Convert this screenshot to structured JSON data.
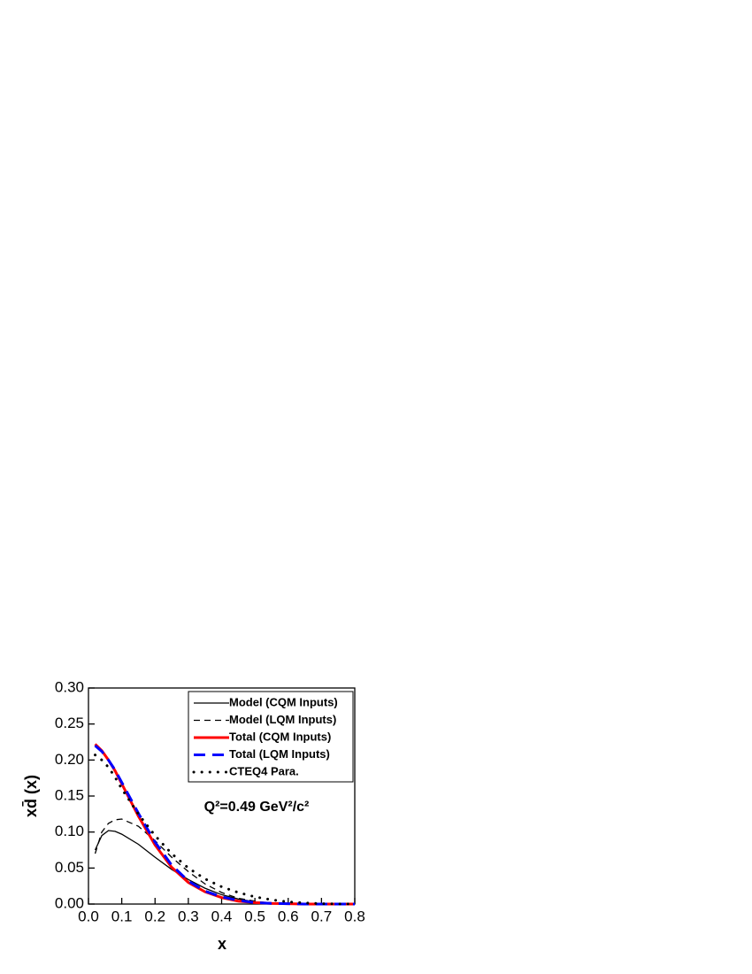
{
  "chart_data": {
    "type": "line",
    "xlabel": "x",
    "ylabel": "xd̄ (x)",
    "annotation": "Q²=0.49 GeV²/c²",
    "x": [
      0.02,
      0.04,
      0.06,
      0.08,
      0.1,
      0.15,
      0.2,
      0.25,
      0.3,
      0.35,
      0.4,
      0.45,
      0.5,
      0.55,
      0.6,
      0.65,
      0.7,
      0.8
    ],
    "series": [
      {
        "name": "Model (CQM Inputs)",
        "color": "#000000",
        "line_style": "solid",
        "line_width": 1.3,
        "values": [
          0.075,
          0.095,
          0.102,
          0.101,
          0.097,
          0.083,
          0.065,
          0.048,
          0.034,
          0.022,
          0.013,
          0.007,
          0.003,
          0.001,
          0,
          0,
          0,
          0
        ]
      },
      {
        "name": "Model (LQM Inputs)",
        "color": "#000000",
        "line_style": "dashed",
        "line_width": 1.3,
        "values": [
          0.07,
          0.1,
          0.112,
          0.117,
          0.118,
          0.108,
          0.088,
          0.065,
          0.045,
          0.028,
          0.016,
          0.008,
          0.004,
          0.001,
          0,
          0,
          0,
          0
        ]
      },
      {
        "name": "Total (CQM Inputs)",
        "color": "#ff0000",
        "line_style": "solid",
        "line_width": 3,
        "values": [
          0.222,
          0.213,
          0.2,
          0.185,
          0.167,
          0.122,
          0.082,
          0.051,
          0.03,
          0.017,
          0.009,
          0.004,
          0.002,
          0.001,
          0.0005,
          0,
          0,
          0
        ]
      },
      {
        "name": "Total (LQM Inputs)",
        "color": "#0000ff",
        "line_style": "longdash",
        "line_width": 3,
        "values": [
          0.22,
          0.212,
          0.2,
          0.186,
          0.169,
          0.126,
          0.086,
          0.054,
          0.032,
          0.018,
          0.01,
          0.005,
          0.002,
          0.001,
          0.0005,
          0,
          0,
          0
        ]
      },
      {
        "name": "CTEQ4 Para.",
        "color": "#000000",
        "line_style": "dotted",
        "line_width": 3,
        "values": [
          0.207,
          0.2,
          0.19,
          0.176,
          0.16,
          0.125,
          0.095,
          0.07,
          0.05,
          0.035,
          0.024,
          0.016,
          0.01,
          0.006,
          0.003,
          0.0015,
          0.0005,
          0
        ]
      }
    ],
    "xlim": [
      0,
      0.8
    ],
    "xticks": [
      {
        "value": 0,
        "label": "0.0"
      },
      0.1,
      0.2,
      0.3,
      0.4,
      0.5,
      0.6,
      0.7,
      0.8
    ],
    "ylim": [
      0,
      0.3
    ],
    "yticks": [
      {
        "value": 0,
        "label": "0.00"
      },
      0.05,
      {
        "value": 0.1,
        "label": "0.10"
      },
      0.15,
      {
        "value": 0.2,
        "label": "0.20"
      },
      0.25,
      {
        "value": 0.3,
        "label": "0.30"
      }
    ],
    "grid": false,
    "legend": "upper right"
  }
}
